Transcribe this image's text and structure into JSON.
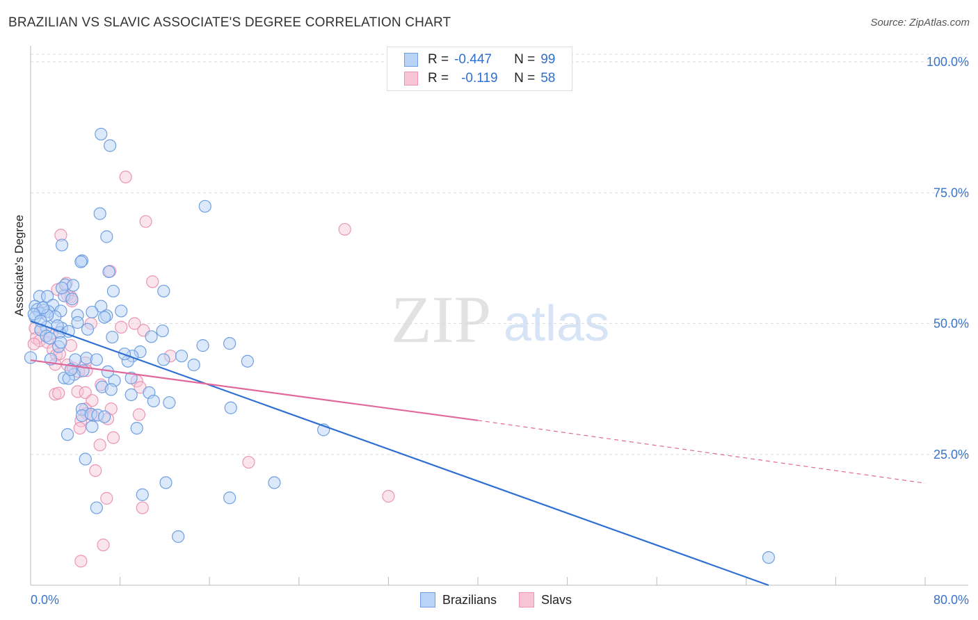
{
  "title": "BRAZILIAN VS SLAVIC ASSOCIATE'S DEGREE CORRELATION CHART",
  "source": "Source: ZipAtlas.com",
  "watermark": {
    "zip": "ZIP",
    "atlas": "atlas"
  },
  "legend": {
    "rows": [
      {
        "r_label": "R =",
        "r_value": "-0.447",
        "n_label": "N =",
        "n_value": "99"
      },
      {
        "r_label": "R =",
        "r_value": "-0.119",
        "n_label": "N =",
        "n_value": "58"
      }
    ]
  },
  "bottom_legend": {
    "items": [
      "Brazilians",
      "Slavs"
    ]
  },
  "colors": {
    "blue": "#2f6fd1",
    "blue_fill": "#b9d3f7",
    "blue_stroke": "#6f9fe0",
    "pink": "#e0689a",
    "pink_fill": "#f7c5d6",
    "pink_stroke": "#eb94b6",
    "axis_text": "#3a73c9",
    "grid": "#d9d9d9"
  },
  "chart_data": {
    "type": "scatter",
    "title": "BRAZILIAN VS SLAVIC ASSOCIATE'S DEGREE CORRELATION CHART",
    "xlabel": "",
    "ylabel": "Associate's Degree",
    "xlim": [
      0,
      80
    ],
    "ylim": [
      0,
      100
    ],
    "x_tick_labels": [
      "0.0%",
      "80.0%"
    ],
    "y_tick_labels": [
      "100.0%",
      "75.0%",
      "50.0%",
      "25.0%"
    ],
    "y_ticks": [
      100,
      75,
      50,
      25
    ],
    "grid": true,
    "series": [
      {
        "name": "Brazilians",
        "r": -0.447,
        "n": 99,
        "trend": {
          "x": [
            0,
            66
          ],
          "y": [
            50.5,
            0
          ]
        },
        "points": [
          [
            6.3,
            86.2
          ],
          [
            7.1,
            84
          ],
          [
            15.6,
            72.4
          ],
          [
            6.2,
            71
          ],
          [
            6.8,
            66.6
          ],
          [
            2.8,
            65
          ],
          [
            4.6,
            62
          ],
          [
            4.5,
            61.8
          ],
          [
            7.0,
            59.9
          ],
          [
            3.1,
            57.4
          ],
          [
            3.8,
            57.3
          ],
          [
            7.4,
            56.2
          ],
          [
            11.9,
            56.2
          ],
          [
            0.8,
            55.2
          ],
          [
            1.5,
            55.2
          ],
          [
            3.0,
            55.3
          ],
          [
            3.7,
            54.7
          ],
          [
            2.0,
            53.5
          ],
          [
            0.4,
            53.3
          ],
          [
            6.3,
            53.3
          ],
          [
            0.6,
            52.7
          ],
          [
            1.2,
            52.6
          ],
          [
            1.6,
            52.3
          ],
          [
            2.7,
            52.4
          ],
          [
            0.8,
            52.0
          ],
          [
            5.5,
            52.2
          ],
          [
            8.1,
            52.4
          ],
          [
            4.2,
            51.6
          ],
          [
            6.8,
            51.5
          ],
          [
            0.4,
            51.2
          ],
          [
            2.2,
            51.3
          ],
          [
            1.5,
            51.6
          ],
          [
            4.2,
            50.2
          ],
          [
            1.4,
            49.3
          ],
          [
            2.8,
            49.1
          ],
          [
            0.9,
            48.8
          ],
          [
            5.1,
            48.9
          ],
          [
            11.8,
            48.6
          ],
          [
            2.6,
            48.3
          ],
          [
            1.4,
            47.6
          ],
          [
            7.3,
            47.4
          ],
          [
            10.8,
            47.5
          ],
          [
            17.8,
            46.2
          ],
          [
            15.4,
            45.8
          ],
          [
            2.5,
            45.6
          ],
          [
            9.8,
            44.6
          ],
          [
            2.7,
            46.4
          ],
          [
            13.5,
            43.8
          ],
          [
            9.1,
            43.8
          ],
          [
            1.8,
            43.2
          ],
          [
            11.9,
            43.1
          ],
          [
            4.0,
            43.1
          ],
          [
            5.0,
            43.4
          ],
          [
            5.9,
            43.1
          ],
          [
            8.7,
            42.8
          ],
          [
            19.4,
            42.8
          ],
          [
            14.6,
            42.1
          ],
          [
            0.0,
            43.5
          ],
          [
            4.7,
            41.0
          ],
          [
            3.9,
            40.3
          ],
          [
            3.0,
            39.6
          ],
          [
            3.4,
            39.5
          ],
          [
            7.5,
            39.1
          ],
          [
            9.0,
            39.6
          ],
          [
            6.4,
            37.9
          ],
          [
            7.2,
            37.4
          ],
          [
            10.6,
            36.8
          ],
          [
            9.0,
            36.4
          ],
          [
            11.0,
            35.2
          ],
          [
            12.4,
            34.9
          ],
          [
            17.9,
            33.9
          ],
          [
            4.6,
            33.6
          ],
          [
            4.6,
            32.4
          ],
          [
            5.4,
            32.7
          ],
          [
            6.0,
            32.5
          ],
          [
            6.6,
            32.2
          ],
          [
            5.5,
            30.3
          ],
          [
            9.5,
            30.0
          ],
          [
            26.2,
            29.7
          ],
          [
            3.3,
            28.8
          ],
          [
            4.9,
            24.1
          ],
          [
            12.1,
            19.6
          ],
          [
            21.8,
            19.6
          ],
          [
            10.0,
            17.3
          ],
          [
            17.8,
            16.7
          ],
          [
            5.9,
            14.8
          ],
          [
            13.2,
            9.3
          ],
          [
            66.0,
            5.3
          ],
          [
            2.8,
            56.8
          ],
          [
            1.1,
            53.0
          ],
          [
            0.3,
            51.8
          ],
          [
            3.4,
            48.5
          ],
          [
            6.6,
            51.2
          ],
          [
            0.9,
            50.5
          ],
          [
            2.4,
            49.6
          ],
          [
            1.7,
            47.2
          ],
          [
            3.6,
            41.2
          ],
          [
            6.9,
            40.8
          ],
          [
            8.4,
            44.2
          ]
        ]
      },
      {
        "name": "Slavs",
        "r": -0.119,
        "n": 58,
        "trend": {
          "x": [
            0,
            40
          ],
          "y": [
            43.0,
            31.5
          ],
          "dashed_to": {
            "x": 80,
            "y": 19.5
          }
        },
        "points": [
          [
            8.5,
            78
          ],
          [
            10.3,
            69.5
          ],
          [
            28.1,
            68
          ],
          [
            2.7,
            66.9
          ],
          [
            7.1,
            60
          ],
          [
            10.9,
            58
          ],
          [
            3.2,
            57.7
          ],
          [
            2.4,
            56.5
          ],
          [
            3.6,
            55.1
          ],
          [
            3.3,
            55.4
          ],
          [
            3.7,
            54.3
          ],
          [
            0.4,
            49.1
          ],
          [
            0.9,
            48.8
          ],
          [
            8.1,
            49.3
          ],
          [
            10.1,
            48.7
          ],
          [
            5.4,
            50.0
          ],
          [
            9.3,
            50.0
          ],
          [
            1.9,
            48.1
          ],
          [
            0.5,
            47.2
          ],
          [
            0.8,
            46.7
          ],
          [
            1.5,
            46.4
          ],
          [
            0.3,
            46.1
          ],
          [
            3.6,
            45.8
          ],
          [
            2.0,
            45.0
          ],
          [
            2.3,
            44.0
          ],
          [
            2.6,
            44.2
          ],
          [
            12.5,
            43.8
          ],
          [
            2.2,
            42.2
          ],
          [
            3.3,
            42.1
          ],
          [
            4.9,
            42.5
          ],
          [
            3.8,
            41.5
          ],
          [
            5.0,
            41.0
          ],
          [
            4.3,
            40.8
          ],
          [
            9.5,
            39.0
          ],
          [
            9.8,
            37.8
          ],
          [
            6.3,
            38.3
          ],
          [
            2.2,
            36.5
          ],
          [
            2.5,
            36.7
          ],
          [
            4.2,
            37.0
          ],
          [
            4.9,
            36.8
          ],
          [
            5.5,
            35.3
          ],
          [
            4.9,
            33.7
          ],
          [
            7.2,
            33.7
          ],
          [
            5.0,
            32.8
          ],
          [
            5.6,
            32.4
          ],
          [
            4.5,
            31.4
          ],
          [
            6.9,
            31.8
          ],
          [
            9.7,
            32.6
          ],
          [
            4.4,
            30.0
          ],
          [
            7.4,
            28.2
          ],
          [
            6.2,
            26.8
          ],
          [
            19.5,
            23.5
          ],
          [
            5.8,
            21.9
          ],
          [
            32.0,
            17.0
          ],
          [
            6.8,
            16.6
          ],
          [
            10.0,
            14.8
          ],
          [
            6.5,
            7.7
          ],
          [
            4.5,
            4.6
          ]
        ]
      }
    ]
  }
}
